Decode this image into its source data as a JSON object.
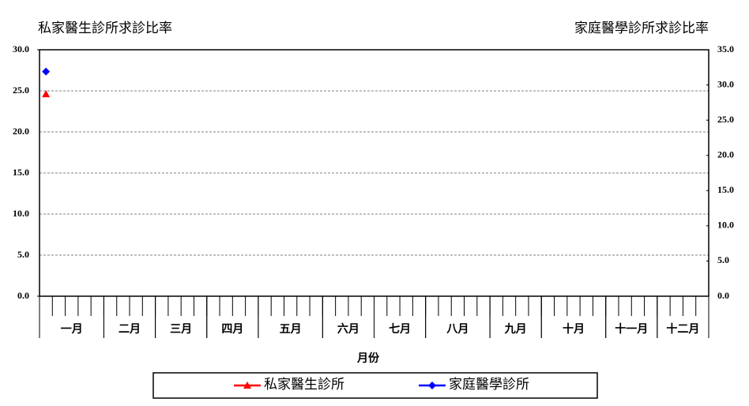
{
  "chart_data": {
    "type": "line",
    "ylabel": "私家醫生診所求診比率",
    "y2label": "家庭醫學診所求診比率",
    "xlabel": "月份",
    "categories": [
      null,
      null,
      null,
      null,
      null,
      null,
      null,
      null,
      null,
      null,
      null,
      null,
      null,
      null,
      null,
      null,
      null,
      null,
      null,
      null,
      null,
      null,
      null,
      null,
      null,
      null,
      null,
      null,
      null,
      null,
      null,
      null,
      null,
      null,
      null,
      null,
      null,
      null,
      null,
      null,
      null,
      null,
      null,
      null,
      null,
      null,
      null,
      null,
      null,
      null,
      null,
      null
    ],
    "groups": [
      {
        "label": "一月",
        "span": 5
      },
      {
        "label": "二月",
        "span": 4
      },
      {
        "label": "三月",
        "span": 4
      },
      {
        "label": "四月",
        "span": 4
      },
      {
        "label": "五月",
        "span": 5
      },
      {
        "label": "六月",
        "span": 4
      },
      {
        "label": "七月",
        "span": 4
      },
      {
        "label": "八月",
        "span": 5
      },
      {
        "label": "九月",
        "span": 4
      },
      {
        "label": "十月",
        "span": 5
      },
      {
        "label": "十一月",
        "span": 4
      },
      {
        "label": "十二月",
        "span": 4
      }
    ],
    "series": [
      {
        "name": "私家醫生診所",
        "color": "#ff0000",
        "marker": "triangle",
        "axis": "y",
        "values": [
          24.6,
          null,
          null,
          null,
          null,
          null,
          null,
          null,
          null,
          null,
          null,
          null,
          null,
          null,
          null,
          null,
          null,
          null,
          null,
          null,
          null,
          null,
          null,
          null,
          null,
          null,
          null,
          null,
          null,
          null,
          null,
          null,
          null,
          null,
          null,
          null,
          null,
          null,
          null,
          null,
          null,
          null,
          null,
          null,
          null,
          null,
          null,
          null,
          null,
          null,
          null,
          null
        ]
      },
      {
        "name": "家庭醫學診所",
        "color": "#0000ff",
        "marker": "diamond",
        "axis": "y2",
        "values": [
          31.9,
          null,
          null,
          null,
          null,
          null,
          null,
          null,
          null,
          null,
          null,
          null,
          null,
          null,
          null,
          null,
          null,
          null,
          null,
          null,
          null,
          null,
          null,
          null,
          null,
          null,
          null,
          null,
          null,
          null,
          null,
          null,
          null,
          null,
          null,
          null,
          null,
          null,
          null,
          null,
          null,
          null,
          null,
          null,
          null,
          null,
          null,
          null,
          null,
          null,
          null,
          null
        ]
      }
    ],
    "ylim": [
      0,
      30
    ],
    "yticks": [
      {
        "value": 0,
        "label": "0.0"
      },
      {
        "value": 5,
        "label": "5.0"
      },
      {
        "value": 10,
        "label": "10.0"
      },
      {
        "value": 15,
        "label": "15.0"
      },
      {
        "value": 20,
        "label": "20.0"
      },
      {
        "value": 25,
        "label": "25.0"
      },
      {
        "value": 30,
        "label": "30.0"
      }
    ],
    "y2lim": [
      0,
      35
    ],
    "y2ticks": [
      {
        "value": 0,
        "label": "0.0"
      },
      {
        "value": 5,
        "label": "5.0"
      },
      {
        "value": 10,
        "label": "10.0"
      },
      {
        "value": 15,
        "label": "15.0"
      },
      {
        "value": 20,
        "label": "20.0"
      },
      {
        "value": 25,
        "label": "25.0"
      },
      {
        "value": 30,
        "label": "30.0"
      },
      {
        "value": 35,
        "label": "35.0"
      }
    ],
    "grid": true
  }
}
